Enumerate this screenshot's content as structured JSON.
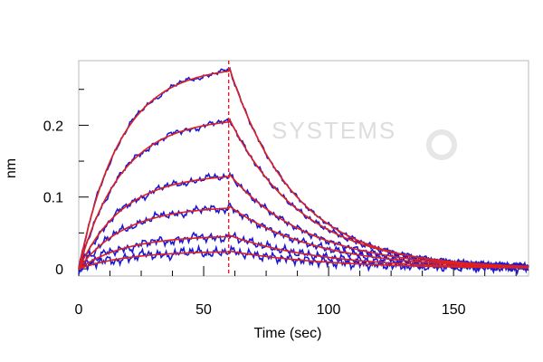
{
  "chart_data": {
    "type": "line",
    "xlabel": "Time (sec)",
    "ylabel": "nm",
    "xlim": [
      0,
      180
    ],
    "ylim": [
      -0.01,
      0.29
    ],
    "x_ticks": [
      0,
      50,
      100,
      150
    ],
    "y_ticks": [
      0,
      0.1,
      0.2
    ],
    "x_tick_labels": [
      "0",
      "50",
      "100",
      "150"
    ],
    "y_tick_labels": [
      "0",
      "0.1",
      "0.2"
    ],
    "grid": false,
    "legend": "none",
    "association_end_x": 60,
    "vertical_marker": {
      "x": 60,
      "style": "dashed",
      "color": "#e0201e"
    },
    "watermark": "SYSTEMS",
    "colors": {
      "measured": "#1a1ad4",
      "fit": "#e0201e",
      "frame": "#b8b8b8"
    },
    "series": [
      {
        "kind": "binding curves",
        "plateau_values": [
          0.283,
          0.211,
          0.133,
          0.088,
          0.047,
          0.025
        ]
      }
    ]
  }
}
